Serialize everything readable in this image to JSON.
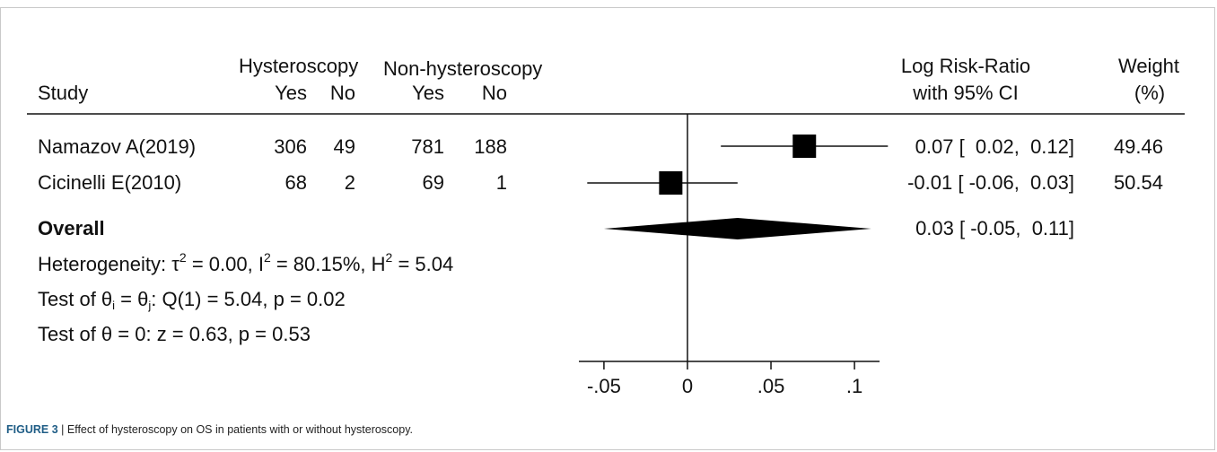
{
  "table": {
    "header": {
      "group_a": "Hysteroscopy",
      "group_b": "Non-hysteroscopy",
      "study": "Study",
      "yes_a": "Yes",
      "no_a": "No",
      "yes_b": "Yes",
      "no_b": "No",
      "effect_line1": "Log Risk-Ratio",
      "effect_line2": "with 95% CI",
      "weight_line1": "Weight",
      "weight_line2": "(%)"
    },
    "rows": [
      {
        "study": "Namazov A(2019)",
        "yes_a": "306",
        "no_a": "49",
        "yes_b": "781",
        "no_b": "188",
        "effect": "0.07 [  0.02,  0.12]",
        "weight": "49.46"
      },
      {
        "study": "Cicinelli E(2010)",
        "yes_a": "68",
        "no_a": "2",
        "yes_b": "69",
        "no_b": "1",
        "effect": "-0.01 [ -0.06,  0.03]",
        "weight": "50.54"
      }
    ],
    "overall": {
      "label": "Overall",
      "effect": "0.03 [ -0.05,  0.11]"
    },
    "heterogeneity": {
      "prefix": "Heterogeneity: ",
      "tau": "τ",
      "tau_val": " = 0.00, I",
      "i_val": " = 80.15%, H",
      "h_val": " = 5.04",
      "sup": "2"
    },
    "test_equal": {
      "prefix": "Test of θ",
      "i": "i",
      "mid": " = θ",
      "j": "j",
      "rest": ": Q(1) = 5.04, p = 0.02"
    },
    "test_zero": "Test of θ = 0: z = 0.63, p = 0.53"
  },
  "chart_data": {
    "type": "forest",
    "xlim": [
      -0.065,
      0.115
    ],
    "null_value": 0,
    "ticks": [
      -0.05,
      0,
      0.05,
      0.1
    ],
    "tick_labels": [
      "-.05",
      "0",
      ".05",
      ".1"
    ],
    "studies": [
      {
        "name": "Namazov A(2019)",
        "estimate": 0.07,
        "ci_low": 0.02,
        "ci_high": 0.12,
        "weight": 49.46
      },
      {
        "name": "Cicinelli E(2010)",
        "estimate": -0.01,
        "ci_low": -0.06,
        "ci_high": 0.03,
        "weight": 50.54
      }
    ],
    "overall": {
      "name": "Overall",
      "estimate": 0.03,
      "ci_low": -0.05,
      "ci_high": 0.11
    }
  },
  "caption": {
    "label": "FIGURE 3",
    "separator": " | ",
    "text": "Effect of hysteroscopy on OS in patients with or without hysteroscopy."
  }
}
